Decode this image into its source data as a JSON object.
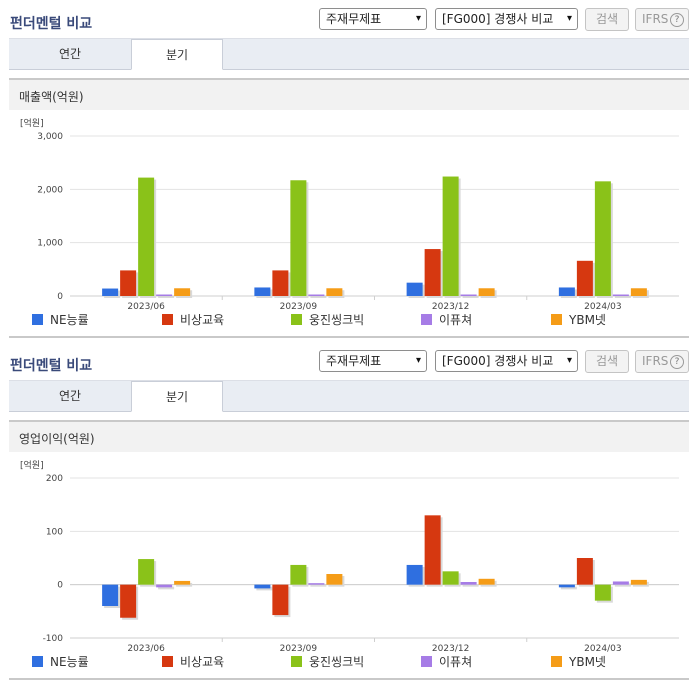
{
  "panels": [
    {
      "header": {
        "title": "펀더멘털 비교",
        "statement_select": "주재무제표",
        "compare_select": "[FG000] 경쟁사 비교",
        "search_label": "검색",
        "ifrs_label": "IFRS",
        "help_glyph": "?"
      },
      "tabs": [
        {
          "label": "연간"
        },
        {
          "label": "분기"
        }
      ],
      "section_title": "매출액(억원)"
    },
    {
      "header": {
        "title": "펀더멘털 비교",
        "statement_select": "주재무제표",
        "compare_select": "[FG000] 경쟁사 비교",
        "search_label": "검색",
        "ifrs_label": "IFRS",
        "help_glyph": "?"
      },
      "tabs": [
        {
          "label": "연간"
        },
        {
          "label": "분기"
        }
      ],
      "section_title": "영업이익(억원)"
    }
  ],
  "colors": {
    "NE능률": "#2f6fe0",
    "비상교육": "#d63810",
    "웅진씽크빅": "#8ac219",
    "이퓨쳐": "#a67ce6",
    "YBM넷": "#f59c17"
  },
  "chart_data": [
    {
      "type": "bar",
      "title": "매출액(억원)",
      "unit_label": "[억원]",
      "categories": [
        "2023/06",
        "2023/09",
        "2023/12",
        "2024/03"
      ],
      "ylim": [
        0,
        3000
      ],
      "yticks": [
        0,
        1000,
        2000,
        3000
      ],
      "ytick_labels": [
        "0",
        "1,000",
        "2,000",
        "3,000"
      ],
      "grid": true,
      "legend": "bottom",
      "series": [
        {
          "name": "NE능률",
          "values": [
            140,
            160,
            250,
            160
          ]
        },
        {
          "name": "비상교육",
          "values": [
            480,
            480,
            880,
            660
          ]
        },
        {
          "name": "웅진씽크빅",
          "values": [
            2220,
            2170,
            2240,
            2150
          ]
        },
        {
          "name": "이퓨쳐",
          "values": [
            10,
            10,
            20,
            10
          ]
        },
        {
          "name": "YBM넷",
          "values": [
            145,
            145,
            145,
            145
          ]
        }
      ]
    },
    {
      "type": "bar",
      "title": "영업이익(억원)",
      "unit_label": "[억원]",
      "categories": [
        "2023/06",
        "2023/09",
        "2023/12",
        "2024/03"
      ],
      "ylim": [
        -100,
        200
      ],
      "yticks": [
        -100,
        0,
        100,
        200
      ],
      "ytick_labels": [
        "-100",
        "0",
        "100",
        "200"
      ],
      "grid": true,
      "legend": "bottom",
      "series": [
        {
          "name": "NE능률",
          "values": [
            -40,
            -7,
            37,
            -5
          ]
        },
        {
          "name": "비상교육",
          "values": [
            -62,
            -57,
            130,
            50
          ]
        },
        {
          "name": "웅진씽크빅",
          "values": [
            48,
            37,
            25,
            -30
          ]
        },
        {
          "name": "이퓨쳐",
          "values": [
            -5,
            -2,
            5,
            6
          ]
        },
        {
          "name": "YBM넷",
          "values": [
            7,
            20,
            11,
            9
          ]
        }
      ]
    }
  ]
}
